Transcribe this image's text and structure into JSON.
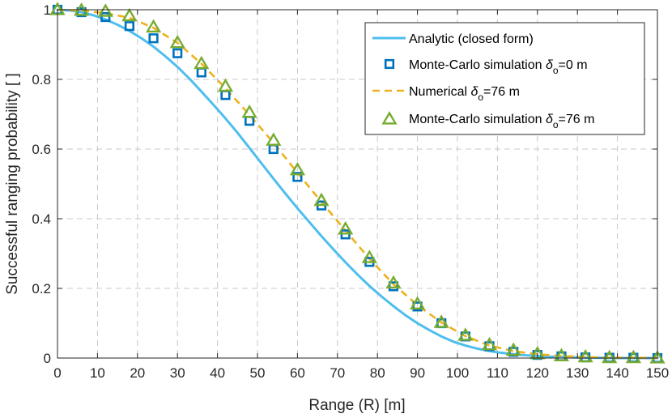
{
  "chart_data": {
    "type": "line",
    "xlabel": "Range (R) [m]",
    "ylabel": "Successful ranging probability [ ]",
    "xlim": [
      0,
      150
    ],
    "ylim": [
      0,
      1
    ],
    "xticks": [
      0,
      10,
      20,
      30,
      40,
      50,
      60,
      70,
      80,
      90,
      100,
      110,
      120,
      130,
      140,
      150
    ],
    "yticks": [
      0,
      0.2,
      0.4,
      0.6,
      0.8,
      1
    ],
    "grid": true,
    "legend_position": "top-right",
    "series": [
      {
        "name": "Analytic (closed form)",
        "style": "solid-line",
        "color": "#4DBEEE",
        "x": [
          0,
          3,
          6,
          9,
          12,
          15,
          18,
          21,
          24,
          27,
          30,
          33,
          36,
          39,
          42,
          45,
          48,
          51,
          54,
          57,
          60,
          63,
          66,
          69,
          72,
          75,
          78,
          81,
          84,
          87,
          90,
          93,
          96,
          99,
          102,
          105,
          108,
          111,
          114,
          117,
          120,
          123,
          126,
          129,
          132,
          135,
          138,
          141,
          144,
          147,
          150
        ],
        "y": [
          1.0,
          0.998,
          0.993,
          0.984,
          0.972,
          0.957,
          0.939,
          0.918,
          0.894,
          0.866,
          0.836,
          0.802,
          0.765,
          0.727,
          0.688,
          0.647,
          0.603,
          0.559,
          0.515,
          0.472,
          0.43,
          0.39,
          0.35,
          0.312,
          0.275,
          0.24,
          0.207,
          0.177,
          0.149,
          0.123,
          0.1,
          0.08,
          0.062,
          0.047,
          0.036,
          0.027,
          0.02,
          0.015,
          0.011,
          0.008,
          0.006,
          0.004,
          0.003,
          0.002,
          0.001,
          0.001,
          0.0,
          0.0,
          0.0,
          0.0,
          0.0
        ]
      },
      {
        "name": "Monte-Carlo simulation",
        "legend_suffix": "=0 m",
        "style": "square-markers",
        "color": "#0072BD",
        "x": [
          0,
          6,
          12,
          18,
          24,
          30,
          36,
          42,
          48,
          54,
          60,
          66,
          72,
          78,
          84,
          90,
          96,
          102,
          108,
          114,
          120,
          126,
          132,
          138,
          144,
          150
        ],
        "y": [
          1.0,
          0.993,
          0.979,
          0.953,
          0.918,
          0.875,
          0.82,
          0.755,
          0.681,
          0.6,
          0.52,
          0.438,
          0.355,
          0.276,
          0.206,
          0.148,
          0.1,
          0.062,
          0.034,
          0.018,
          0.009,
          0.005,
          0.002,
          0.001,
          0.001,
          0.0
        ]
      },
      {
        "name": "Numerical",
        "legend_suffix": "=76 m",
        "style": "dashed-line",
        "color": "#EDB120",
        "x": [
          0,
          6,
          12,
          18,
          24,
          30,
          36,
          42,
          48,
          54,
          60,
          66,
          72,
          78,
          84,
          90,
          96,
          102,
          108,
          114,
          120,
          126,
          132,
          138,
          144,
          150
        ],
        "y": [
          1.0,
          0.998,
          0.99,
          0.977,
          0.948,
          0.905,
          0.845,
          0.775,
          0.698,
          0.618,
          0.532,
          0.448,
          0.366,
          0.285,
          0.212,
          0.152,
          0.102,
          0.063,
          0.036,
          0.02,
          0.011,
          0.006,
          0.003,
          0.001,
          0.001,
          0.0
        ]
      },
      {
        "name": "Monte-Carlo simulation",
        "legend_suffix": "=76 m",
        "style": "triangle-markers",
        "color": "#77AC30",
        "x": [
          0,
          6,
          12,
          18,
          24,
          30,
          36,
          42,
          48,
          54,
          60,
          66,
          72,
          78,
          84,
          90,
          96,
          102,
          108,
          114,
          120,
          126,
          132,
          138,
          144,
          150
        ],
        "y": [
          1.0,
          0.998,
          0.995,
          0.982,
          0.95,
          0.905,
          0.845,
          0.78,
          0.705,
          0.625,
          0.54,
          0.452,
          0.37,
          0.288,
          0.215,
          0.155,
          0.102,
          0.065,
          0.038,
          0.022,
          0.012,
          0.006,
          0.003,
          0.001,
          0.001,
          0.0
        ]
      }
    ],
    "legend": [
      {
        "label": "Analytic (closed form)"
      },
      {
        "label": "Monte-Carlo simulation ",
        "sym": "δ",
        "sub": "o",
        "suffix": "=0 m"
      },
      {
        "label": "Numerical ",
        "sym": "δ",
        "sub": "o",
        "suffix": "=76 m"
      },
      {
        "label": "Monte-Carlo simulation ",
        "sym": "δ",
        "sub": "o",
        "suffix": "=76 m"
      }
    ]
  }
}
